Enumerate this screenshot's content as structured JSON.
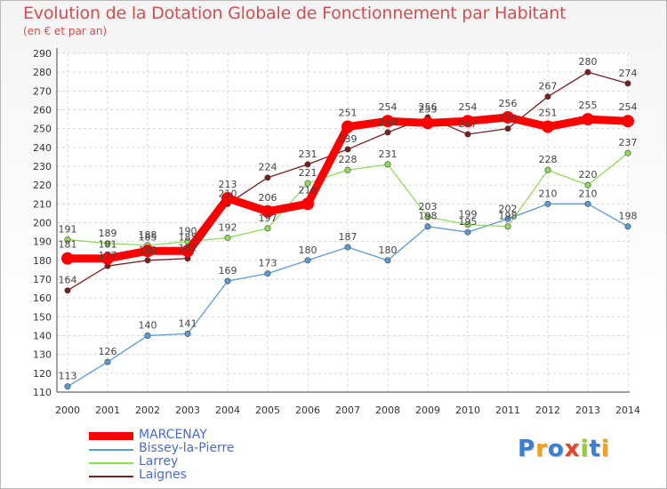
{
  "chart_data": {
    "type": "line",
    "title": "Evolution de la Dotation Globale de Fonctionnement par Habitant",
    "subtitle": "(en € et par an)",
    "ylim": [
      110,
      290
    ],
    "y_ticks": [
      110,
      120,
      130,
      140,
      150,
      160,
      170,
      180,
      190,
      200,
      210,
      220,
      230,
      240,
      250,
      260,
      270,
      280,
      290
    ],
    "x": [
      "2000",
      "2001",
      "2002",
      "2003",
      "2004",
      "2005",
      "2006",
      "2007",
      "2008",
      "2009",
      "2010",
      "2011",
      "2012",
      "2013",
      "2014"
    ],
    "grid": true,
    "legend_position": "bottom-left",
    "series": [
      {
        "name": "MARCENAY",
        "color": "#ff0000",
        "values": [
          181,
          181,
          185,
          185,
          213,
          206,
          210,
          251,
          254,
          253,
          254,
          256,
          251,
          255,
          254
        ]
      },
      {
        "name": "Bissey-la-Pierre",
        "color": "#5b9bd5",
        "values": [
          113,
          126,
          140,
          141,
          169,
          173,
          180,
          187,
          180,
          198,
          195,
          202,
          210,
          210,
          198
        ]
      },
      {
        "name": "Larrey",
        "color": "#8fdc5a",
        "values": [
          191,
          189,
          188,
          190,
          192,
          197,
          221,
          228,
          231,
          203,
          199,
          198,
          228,
          220,
          237
        ]
      },
      {
        "name": "Laignes",
        "color": "#7a1f1f",
        "values": [
          164,
          177,
          180,
          181,
          210,
          224,
          231,
          239,
          248,
          256,
          247,
          250,
          267,
          280,
          274
        ]
      }
    ]
  },
  "brand": {
    "letters": [
      "P",
      "r",
      "o",
      "x",
      "i",
      "t",
      "i"
    ],
    "colors": [
      "#3b7fd4",
      "#f2a21e",
      "#3b7fd4",
      "#e8442a",
      "#9acd32",
      "#3b7fd4",
      "#f2a21e"
    ]
  }
}
